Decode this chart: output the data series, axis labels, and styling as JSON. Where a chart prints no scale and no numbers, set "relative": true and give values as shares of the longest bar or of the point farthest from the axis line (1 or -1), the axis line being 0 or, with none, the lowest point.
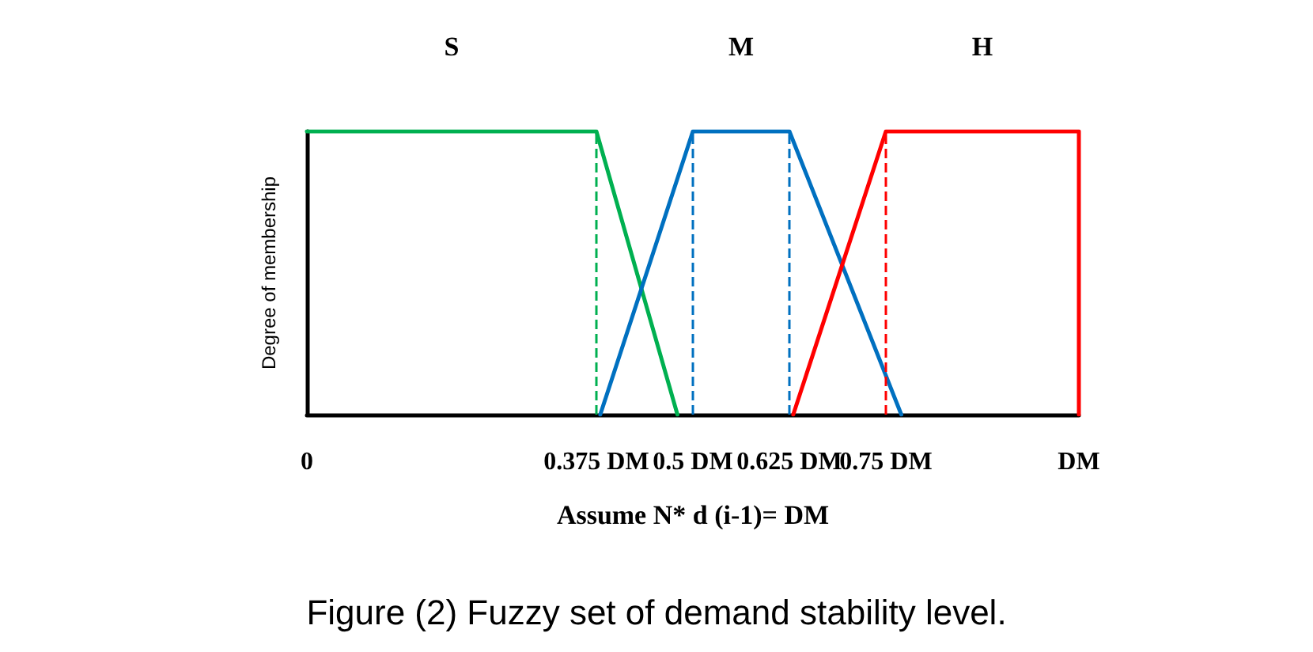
{
  "chart_data": {
    "type": "line",
    "relative": true,
    "xlabel": "Assume N* d (i-1)= DM",
    "ylabel": "Degree of membership",
    "xlim": [
      0,
      1
    ],
    "xticks": [
      {
        "value": 0,
        "label": "0"
      },
      {
        "value": 0.375,
        "label": "0.375 DM"
      },
      {
        "value": 0.5,
        "label": "0.5 DM"
      },
      {
        "value": 0.625,
        "label": "0.625 DM"
      },
      {
        "value": 0.75,
        "label": "0.75 DM"
      },
      {
        "value": 1,
        "label": "DM"
      }
    ],
    "series": [
      {
        "name": "S",
        "color": "#00b050",
        "x": [
          0,
          0.375,
          0.48
        ],
        "values": [
          1,
          1,
          0
        ]
      },
      {
        "name": "M",
        "color": "#0070c0",
        "x": [
          0.38,
          0.5,
          0.625,
          0.77
        ],
        "values": [
          0,
          1,
          1,
          0
        ]
      },
      {
        "name": "H",
        "color": "#ff0000",
        "x": [
          0.63,
          0.75,
          1,
          1
        ],
        "values": [
          0,
          1,
          1,
          0
        ]
      }
    ],
    "ref_lines": [
      {
        "axis": "x",
        "value": 0.375,
        "color": "#00b050",
        "line_style": "dashed"
      },
      {
        "axis": "x",
        "value": 0.5,
        "color": "#0070c0",
        "line_style": "dashed"
      },
      {
        "axis": "x",
        "value": 0.625,
        "color": "#0070c0",
        "line_style": "dashed"
      },
      {
        "axis": "x",
        "value": 0.75,
        "color": "#ff0000",
        "line_style": "dashed"
      }
    ],
    "annotations": [
      "Figure (2) Fuzzy set of demand stability level."
    ],
    "legend": false,
    "grid": false,
    "marker": "none",
    "line_style": "solid"
  }
}
